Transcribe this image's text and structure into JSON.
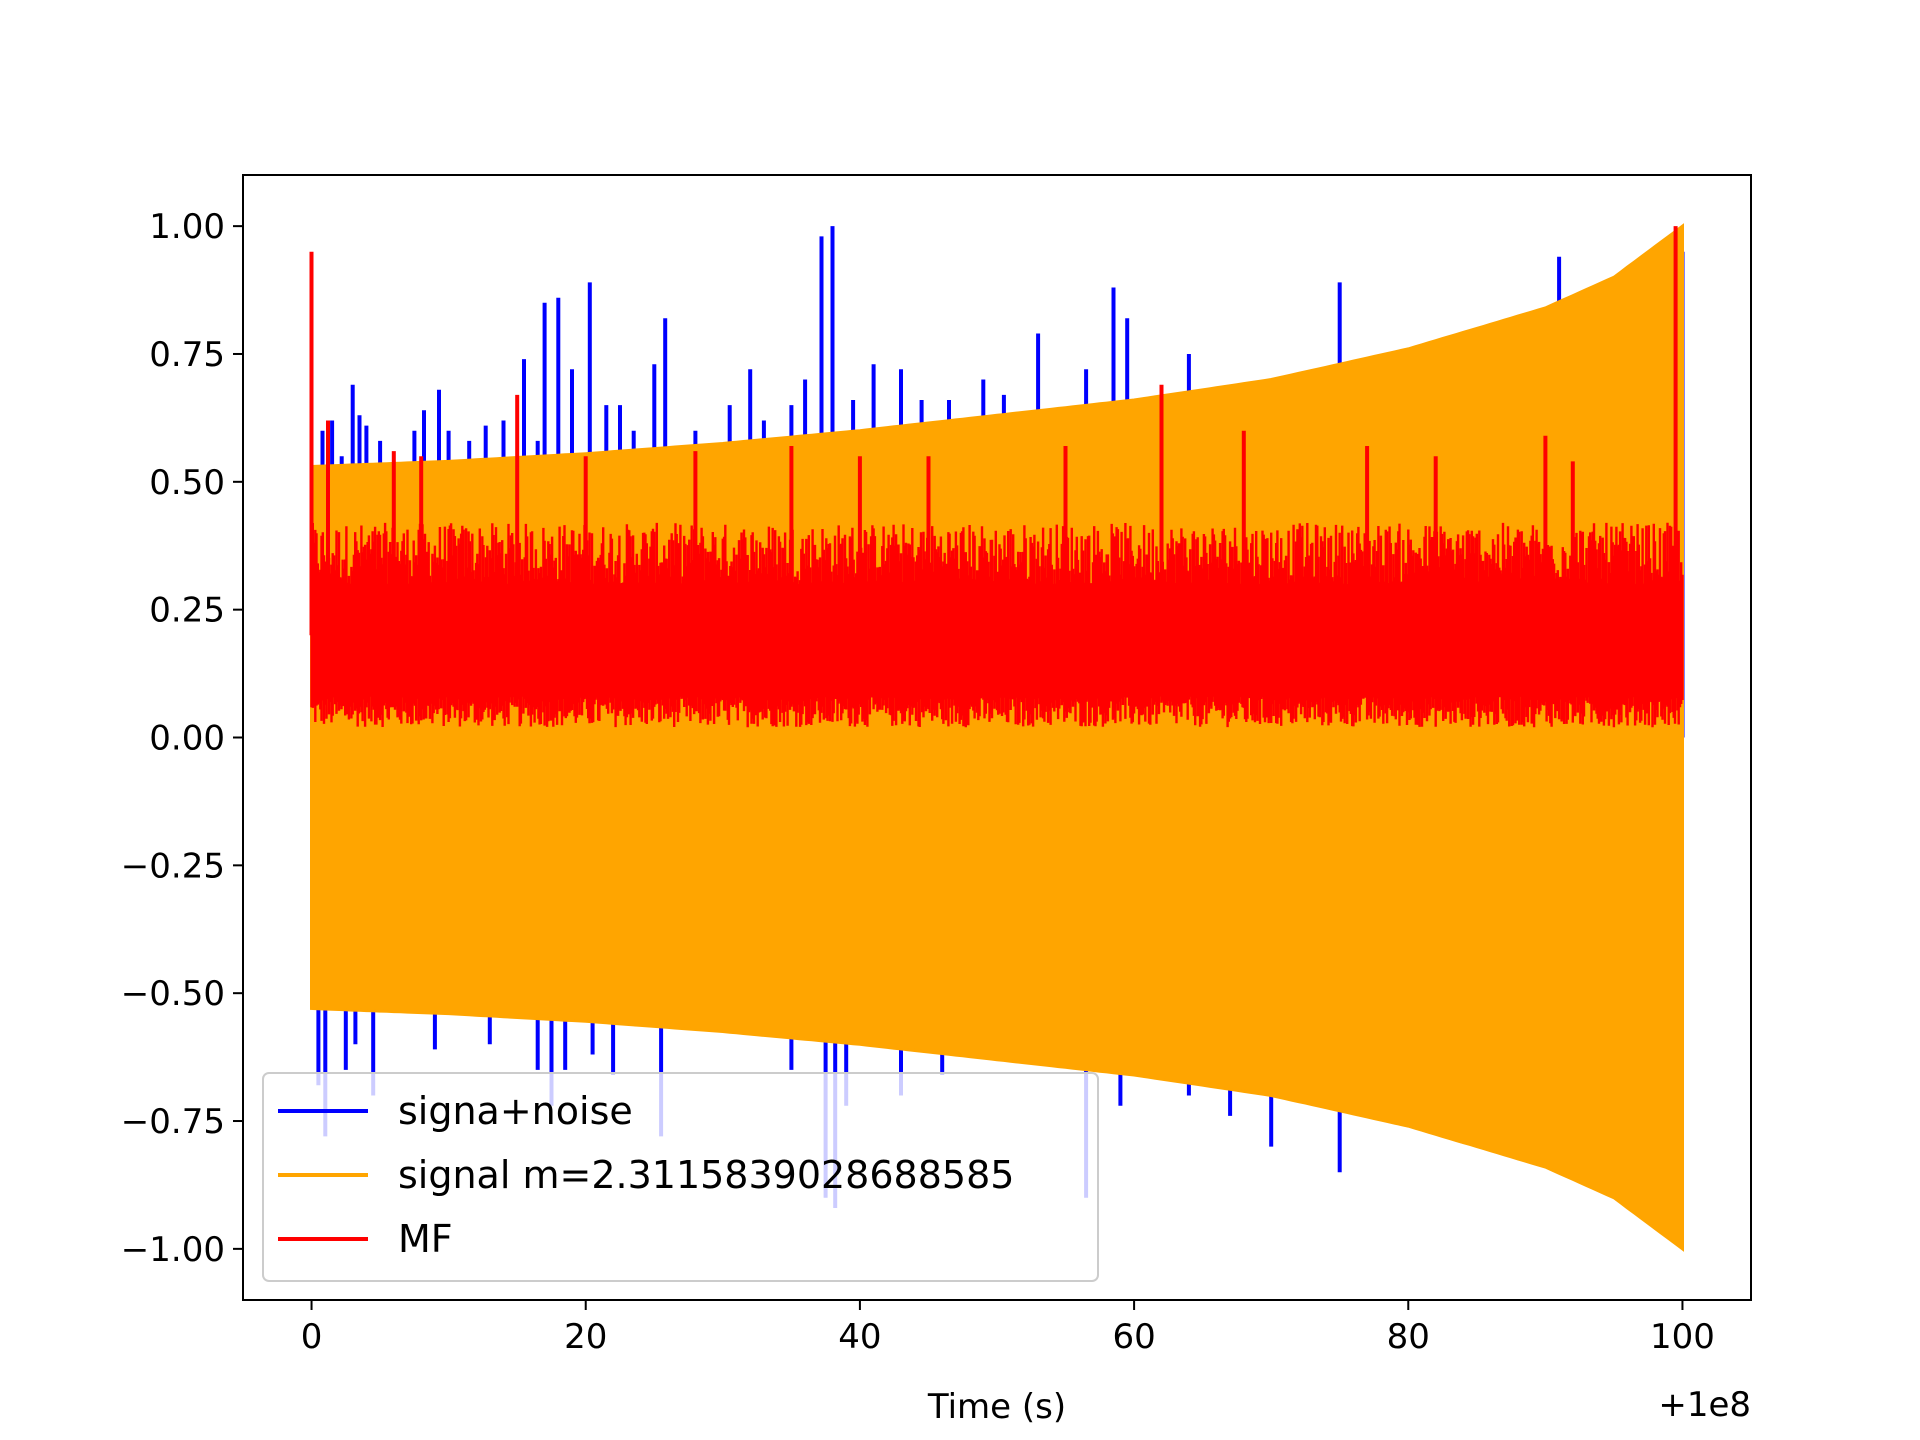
{
  "chart_data": {
    "type": "line",
    "title": "",
    "xlabel": "Time (s)",
    "ylabel": "",
    "x_offset_label": "+1e8",
    "xlim": [
      -5,
      105
    ],
    "ylim": [
      -1.1,
      1.1
    ],
    "x_ticks": [
      0,
      20,
      40,
      60,
      80,
      100
    ],
    "x_tick_labels": [
      "0",
      "20",
      "40",
      "60",
      "80",
      "100"
    ],
    "y_ticks": [
      1.0,
      0.75,
      0.5,
      0.25,
      0.0,
      -0.25,
      -0.5,
      -0.75,
      -1.0
    ],
    "y_tick_labels": [
      "1.00",
      "0.75",
      "0.50",
      "0.25",
      "0.00",
      "−0.25",
      "−0.50",
      "−0.75",
      "−1.00"
    ],
    "grid": false,
    "legend_position": "lower-left",
    "series": [
      {
        "name": "signa+noise",
        "color": "#0000ff",
        "description_type": "noise spikes",
        "positive_spikes": [
          [
            0.8,
            0.6
          ],
          [
            1.5,
            0.62
          ],
          [
            2.2,
            0.55
          ],
          [
            3.0,
            0.69
          ],
          [
            3.5,
            0.63
          ],
          [
            4.0,
            0.61
          ],
          [
            5.0,
            0.58
          ],
          [
            7.5,
            0.6
          ],
          [
            8.2,
            0.64
          ],
          [
            9.3,
            0.68
          ],
          [
            10.0,
            0.6
          ],
          [
            11.5,
            0.58
          ],
          [
            12.7,
            0.61
          ],
          [
            14.0,
            0.62
          ],
          [
            15.5,
            0.74
          ],
          [
            16.5,
            0.58
          ],
          [
            17.0,
            0.85
          ],
          [
            18.0,
            0.86
          ],
          [
            19.0,
            0.72
          ],
          [
            20.3,
            0.89
          ],
          [
            21.5,
            0.65
          ],
          [
            22.5,
            0.65
          ],
          [
            23.5,
            0.6
          ],
          [
            25.0,
            0.73
          ],
          [
            25.8,
            0.82
          ],
          [
            28.0,
            0.6
          ],
          [
            30.5,
            0.65
          ],
          [
            32.0,
            0.72
          ],
          [
            33.0,
            0.62
          ],
          [
            35.0,
            0.65
          ],
          [
            36.0,
            0.7
          ],
          [
            37.2,
            0.98
          ],
          [
            38.0,
            1.0
          ],
          [
            39.5,
            0.66
          ],
          [
            41.0,
            0.73
          ],
          [
            43.0,
            0.72
          ],
          [
            44.5,
            0.66
          ],
          [
            46.5,
            0.66
          ],
          [
            49.0,
            0.7
          ],
          [
            50.5,
            0.67
          ],
          [
            53.0,
            0.79
          ],
          [
            56.5,
            0.72
          ],
          [
            58.5,
            0.88
          ],
          [
            59.5,
            0.82
          ],
          [
            61.0,
            0.65
          ],
          [
            64.0,
            0.75
          ],
          [
            68.0,
            0.6
          ],
          [
            71.0,
            0.62
          ],
          [
            75.0,
            0.89
          ],
          [
            91.0,
            0.94
          ],
          [
            100.0,
            0.95
          ]
        ],
        "negative_spikes": [
          [
            0.5,
            -0.68
          ],
          [
            1.0,
            -0.78
          ],
          [
            2.5,
            -0.65
          ],
          [
            3.2,
            -0.6
          ],
          [
            4.5,
            -0.7
          ],
          [
            9.0,
            -0.61
          ],
          [
            13.0,
            -0.6
          ],
          [
            16.5,
            -0.65
          ],
          [
            17.5,
            -0.72
          ],
          [
            18.5,
            -0.65
          ],
          [
            20.5,
            -0.62
          ],
          [
            22.0,
            -0.66
          ],
          [
            25.5,
            -0.78
          ],
          [
            35.0,
            -0.65
          ],
          [
            37.5,
            -0.9
          ],
          [
            38.2,
            -0.92
          ],
          [
            39.0,
            -0.72
          ],
          [
            43.0,
            -0.7
          ],
          [
            46.0,
            -0.66
          ],
          [
            56.5,
            -0.9
          ],
          [
            59.0,
            -0.72
          ],
          [
            64.0,
            -0.7
          ],
          [
            67.0,
            -0.74
          ],
          [
            70.0,
            -0.8
          ],
          [
            75.0,
            -0.85
          ]
        ]
      },
      {
        "name": "signal m=2.3115839028688585",
        "color": "#ffa500",
        "description_type": "chirp envelope",
        "envelope_x": [
          0,
          10,
          20,
          30,
          40,
          50,
          60,
          70,
          80,
          90,
          95,
          100
        ],
        "envelope_upper": [
          0.53,
          0.54,
          0.555,
          0.575,
          0.6,
          0.63,
          0.66,
          0.7,
          0.76,
          0.84,
          0.9,
          1.0
        ],
        "envelope_lower": [
          -0.53,
          -0.54,
          -0.555,
          -0.575,
          -0.6,
          -0.63,
          -0.66,
          -0.7,
          -0.76,
          -0.84,
          -0.9,
          -1.0
        ]
      },
      {
        "name": "MF",
        "color": "#ff0000",
        "description_type": "matched filter output",
        "band_lower": 0.02,
        "band_upper": 0.38,
        "peaks": [
          [
            0.0,
            0.95
          ],
          [
            1.2,
            0.62
          ],
          [
            6.0,
            0.56
          ],
          [
            8.0,
            0.55
          ],
          [
            15.0,
            0.67
          ],
          [
            20.0,
            0.55
          ],
          [
            28.0,
            0.56
          ],
          [
            35.0,
            0.57
          ],
          [
            40.0,
            0.55
          ],
          [
            45.0,
            0.55
          ],
          [
            55.0,
            0.57
          ],
          [
            62.0,
            0.69
          ],
          [
            68.0,
            0.6
          ],
          [
            77.0,
            0.57
          ],
          [
            82.0,
            0.55
          ],
          [
            90.0,
            0.59
          ],
          [
            92.0,
            0.54
          ],
          [
            99.5,
            1.0
          ]
        ]
      }
    ]
  }
}
